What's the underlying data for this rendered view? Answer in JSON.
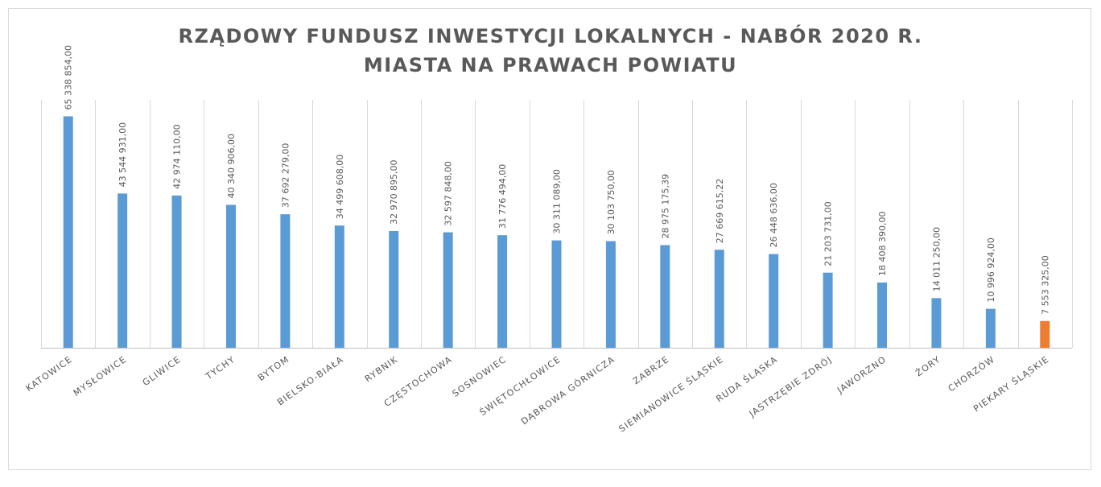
{
  "chart_data": {
    "type": "bar",
    "title_lines": [
      "RZĄDOWY FUNDUSZ INWESTYCJI LOKALNYCH - NABÓR 2020 R.",
      "MIASTA NA PRAWACH POWIATU"
    ],
    "categories": [
      "KATOWICE",
      "MYSŁOWICE",
      "GLIWICE",
      "TYCHY",
      "BYTOM",
      "BIELSKO-BIAŁA",
      "RYBNIK",
      "CZĘSTOCHOWA",
      "SOSNOWIEC",
      "ŚWIĘTOCHŁOWICE",
      "DĄBROWA GÓRNICZA",
      "ZABRZE",
      "SIEMIANOWICE ŚLĄSKIE",
      "RUDA ŚLĄSKA",
      "JASTRZĘBIE ZDRÓJ",
      "JAWORZNO",
      "ŻORY",
      "CHORZÓW",
      "PIEKARY ŚLĄSKIE"
    ],
    "values": [
      65338854.0,
      43544931.0,
      42974110.0,
      40340906.0,
      37692279.0,
      34499608.0,
      32970895.0,
      32597848.0,
      31776494.0,
      30311089.0,
      30103750.0,
      28975175.39,
      27669615.22,
      26448636.0,
      21203731.0,
      18408390.0,
      14011250.0,
      10996924.0,
      7553325.0
    ],
    "value_labels": [
      "65 338 854,00",
      "43 544 931,00",
      "42 974 110,00",
      "40 340 906,00",
      "37 692 279,00",
      "34 499 608,00",
      "32 970 895,00",
      "32 597 848,00",
      "31 776 494,00",
      "30 311 089,00",
      "30 103 750,00",
      "28 975 175,39",
      "27 669 615,22",
      "26 448 636,00",
      "21 203 731,00",
      "18 408 390,00",
      "14 011 250,00",
      "10 996 924,00",
      "7 553 325,00"
    ],
    "bar_colors": [
      "#5b9bd5",
      "#5b9bd5",
      "#5b9bd5",
      "#5b9bd5",
      "#5b9bd5",
      "#5b9bd5",
      "#5b9bd5",
      "#5b9bd5",
      "#5b9bd5",
      "#5b9bd5",
      "#5b9bd5",
      "#5b9bd5",
      "#5b9bd5",
      "#5b9bd5",
      "#5b9bd5",
      "#5b9bd5",
      "#5b9bd5",
      "#5b9bd5",
      "#ed7d31"
    ],
    "ylim": [
      0,
      70000000
    ],
    "xlabel": "",
    "ylabel": "",
    "grid": "vertical",
    "legend": "none"
  }
}
